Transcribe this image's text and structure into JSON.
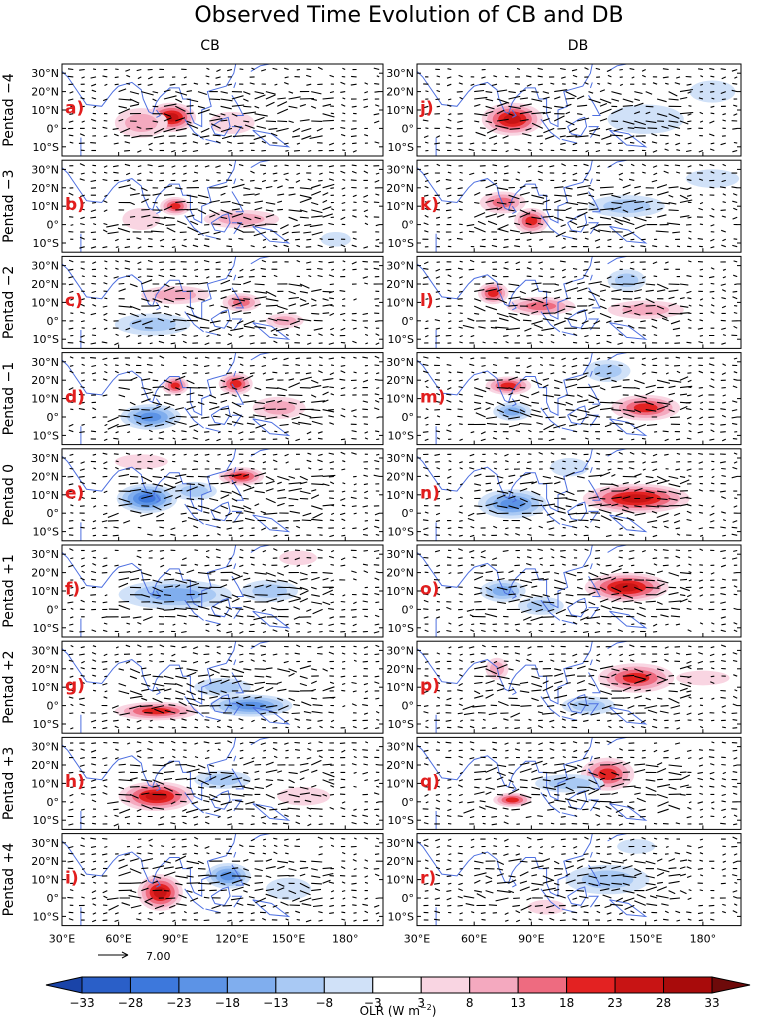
{
  "chart_data": {
    "type": "heatmap",
    "title": "Observed Time Evolution of CB and DB",
    "columns": [
      "CB",
      "DB"
    ],
    "row_labels": [
      "Pentad −4",
      "Pentad −3",
      "Pentad −2",
      "Pentad −1",
      "Pentad 0",
      "Pentad +1",
      "Pentad +2",
      "Pentad +3",
      "Pentad +4"
    ],
    "panel_letters": {
      "CB": [
        "a)",
        "b)",
        "c)",
        "d)",
        "e)",
        "f)",
        "g)",
        "h)",
        "i)"
      ],
      "DB": [
        "j)",
        "k)",
        "l)",
        "m)",
        "n)",
        "o)",
        "p)",
        "q)",
        "r)"
      ]
    },
    "lat_ticks": [
      "30°N",
      "20°N",
      "10°N",
      "0°",
      "10°S"
    ],
    "lat_values": [
      30,
      20,
      10,
      0,
      -10
    ],
    "lon_ticks": [
      "30°E",
      "60°E",
      "90°E",
      "120°E",
      "150°E",
      "180°"
    ],
    "lon_values": [
      30,
      60,
      90,
      120,
      150,
      180
    ],
    "xlim": [
      30,
      200
    ],
    "ylim": [
      -15,
      35
    ],
    "reference_vector": "7.00",
    "colorbar": {
      "label_main": "OLR (W m",
      "label_sup": "−2",
      "label_end": ")",
      "levels": [
        -33,
        -28,
        -23,
        -18,
        -13,
        -8,
        -3,
        3,
        8,
        13,
        18,
        23,
        28,
        33
      ],
      "level_labels": [
        "−33",
        "−28",
        "−23",
        "−18",
        "−13",
        "−8",
        "−3",
        "3",
        "8",
        "13",
        "18",
        "23",
        "28",
        "33"
      ],
      "colors": [
        "#2a5fc8",
        "#3d78dc",
        "#5c93e6",
        "#80aeee",
        "#a9c9f4",
        "#d0e1f8",
        "#ffffff",
        "#f9d5e2",
        "#f4a9bf",
        "#ee6b80",
        "#e32222",
        "#c81414",
        "#a80b0b"
      ],
      "low_arrow_color": "#1a44a8",
      "high_arrow_color": "#6e0a0a"
    },
    "grid": false,
    "coast_color": "#4d6fe0",
    "vector_color": "#000000",
    "anomalies": {
      "CB": [
        [
          {
            "lon": 88,
            "lat": 6,
            "v": 26,
            "rx": 13,
            "ry": 8
          },
          {
            "lon": 72,
            "lat": 3,
            "v": 9,
            "rx": 14,
            "ry": 8
          },
          {
            "lon": 120,
            "lat": 3,
            "v": 6,
            "rx": 12,
            "ry": 6
          }
        ],
        [
          {
            "lon": 90,
            "lat": 10,
            "v": 19,
            "rx": 8,
            "ry": 5
          },
          {
            "lon": 125,
            "lat": 3,
            "v": 11,
            "rx": 20,
            "ry": 5
          },
          {
            "lon": 72,
            "lat": 3,
            "v": 7,
            "rx": 10,
            "ry": 6
          },
          {
            "lon": 175,
            "lat": -8,
            "v": -7,
            "rx": 8,
            "ry": 4
          }
        ],
        [
          {
            "lon": 78,
            "lat": -2,
            "v": -11,
            "rx": 20,
            "ry": 6
          },
          {
            "lon": 90,
            "lat": 14,
            "v": 11,
            "rx": 18,
            "ry": 5
          },
          {
            "lon": 125,
            "lat": 10,
            "v": 14,
            "rx": 10,
            "ry": 5
          },
          {
            "lon": 148,
            "lat": 0,
            "v": 11,
            "rx": 10,
            "ry": 4
          }
        ],
        [
          {
            "lon": 77,
            "lat": 0,
            "v": -20,
            "rx": 16,
            "ry": 7
          },
          {
            "lon": 90,
            "lat": 17,
            "v": 19,
            "rx": 7,
            "ry": 5
          },
          {
            "lon": 122,
            "lat": 18,
            "v": 22,
            "rx": 9,
            "ry": 6
          },
          {
            "lon": 145,
            "lat": 5,
            "v": 9,
            "rx": 14,
            "ry": 6
          }
        ],
        [
          {
            "lon": 75,
            "lat": 8,
            "v": -24,
            "rx": 16,
            "ry": 8
          },
          {
            "lon": 100,
            "lat": 12,
            "v": -10,
            "rx": 12,
            "ry": 5
          },
          {
            "lon": 125,
            "lat": 20,
            "v": 22,
            "rx": 12,
            "ry": 5
          },
          {
            "lon": 72,
            "lat": 28,
            "v": 6,
            "rx": 14,
            "ry": 4
          }
        ],
        [
          {
            "lon": 90,
            "lat": 8,
            "v": -14,
            "rx": 30,
            "ry": 8
          },
          {
            "lon": 140,
            "lat": 10,
            "v": -9,
            "rx": 15,
            "ry": 6
          },
          {
            "lon": 155,
            "lat": 28,
            "v": 5,
            "rx": 10,
            "ry": 4
          }
        ],
        [
          {
            "lon": 80,
            "lat": -3,
            "v": 19,
            "rx": 22,
            "ry": 5
          },
          {
            "lon": 130,
            "lat": 0,
            "v": -22,
            "rx": 22,
            "ry": 6
          },
          {
            "lon": 115,
            "lat": 10,
            "v": -10,
            "rx": 15,
            "ry": 5
          }
        ],
        [
          {
            "lon": 80,
            "lat": 3,
            "v": 24,
            "rx": 20,
            "ry": 8
          },
          {
            "lon": 115,
            "lat": 12,
            "v": -10,
            "rx": 15,
            "ry": 5
          },
          {
            "lon": 158,
            "lat": 3,
            "v": 6,
            "rx": 14,
            "ry": 5
          }
        ],
        [
          {
            "lon": 82,
            "lat": 3,
            "v": 25,
            "rx": 12,
            "ry": 10
          },
          {
            "lon": 118,
            "lat": 12,
            "v": -20,
            "rx": 12,
            "ry": 7
          },
          {
            "lon": 150,
            "lat": 5,
            "v": -6,
            "rx": 12,
            "ry": 6
          }
        ]
      ],
      "DB": [
        [
          {
            "lon": 80,
            "lat": 5,
            "v": 24,
            "rx": 16,
            "ry": 9
          },
          {
            "lon": 150,
            "lat": 5,
            "v": -8,
            "rx": 20,
            "ry": 8
          },
          {
            "lon": 185,
            "lat": 20,
            "v": -6,
            "rx": 12,
            "ry": 6
          }
        ],
        [
          {
            "lon": 75,
            "lat": 12,
            "v": 18,
            "rx": 12,
            "ry": 6
          },
          {
            "lon": 90,
            "lat": 2,
            "v": 19,
            "rx": 9,
            "ry": 7
          },
          {
            "lon": 140,
            "lat": 10,
            "v": -11,
            "rx": 20,
            "ry": 6
          },
          {
            "lon": 185,
            "lat": 25,
            "v": -6,
            "rx": 14,
            "ry": 5
          }
        ],
        [
          {
            "lon": 70,
            "lat": 15,
            "v": 22,
            "rx": 8,
            "ry": 6
          },
          {
            "lon": 95,
            "lat": 8,
            "v": 15,
            "rx": 18,
            "ry": 5
          },
          {
            "lon": 150,
            "lat": 6,
            "v": 13,
            "rx": 20,
            "ry": 5
          },
          {
            "lon": 140,
            "lat": 22,
            "v": -12,
            "rx": 10,
            "ry": 6
          }
        ],
        [
          {
            "lon": 78,
            "lat": 17,
            "v": 19,
            "rx": 12,
            "ry": 5
          },
          {
            "lon": 80,
            "lat": 3,
            "v": -17,
            "rx": 10,
            "ry": 5
          },
          {
            "lon": 150,
            "lat": 5,
            "v": 23,
            "rx": 18,
            "ry": 7
          },
          {
            "lon": 130,
            "lat": 25,
            "v": -12,
            "rx": 12,
            "ry": 6
          }
        ],
        [
          {
            "lon": 80,
            "lat": 5,
            "v": -20,
            "rx": 18,
            "ry": 8
          },
          {
            "lon": 145,
            "lat": 8,
            "v": 26,
            "rx": 28,
            "ry": 8
          },
          {
            "lon": 110,
            "lat": 25,
            "v": -7,
            "rx": 10,
            "ry": 5
          }
        ],
        [
          {
            "lon": 140,
            "lat": 12,
            "v": 24,
            "rx": 22,
            "ry": 8
          },
          {
            "lon": 75,
            "lat": 10,
            "v": -15,
            "rx": 12,
            "ry": 6
          },
          {
            "lon": 95,
            "lat": 2,
            "v": -10,
            "rx": 12,
            "ry": 5
          }
        ],
        [
          {
            "lon": 145,
            "lat": 15,
            "v": 23,
            "rx": 20,
            "ry": 8
          },
          {
            "lon": 120,
            "lat": 0,
            "v": -12,
            "rx": 14,
            "ry": 5
          },
          {
            "lon": 72,
            "lat": 20,
            "v": 10,
            "rx": 6,
            "ry": 6
          },
          {
            "lon": 180,
            "lat": 15,
            "v": 8,
            "rx": 14,
            "ry": 4
          }
        ],
        [
          {
            "lon": 130,
            "lat": 15,
            "v": 22,
            "rx": 14,
            "ry": 9
          },
          {
            "lon": 80,
            "lat": 1,
            "v": 22,
            "rx": 10,
            "ry": 4
          },
          {
            "lon": 110,
            "lat": 10,
            "v": -10,
            "rx": 18,
            "ry": 5
          }
        ],
        [
          {
            "lon": 130,
            "lat": 10,
            "v": -13,
            "rx": 22,
            "ry": 8
          },
          {
            "lon": 145,
            "lat": 28,
            "v": -6,
            "rx": 10,
            "ry": 4
          },
          {
            "lon": 98,
            "lat": -5,
            "v": 6,
            "rx": 10,
            "ry": 4
          }
        ]
      ]
    }
  }
}
